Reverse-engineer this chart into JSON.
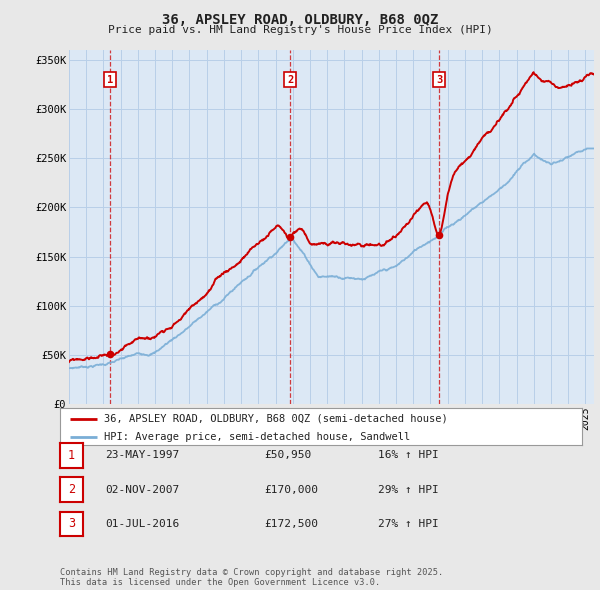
{
  "title": "36, APSLEY ROAD, OLDBURY, B68 0QZ",
  "subtitle": "Price paid vs. HM Land Registry's House Price Index (HPI)",
  "bg_color": "#e8e8e8",
  "plot_bg_color": "#dce8f5",
  "grid_color": "#b8cfe8",
  "property_color": "#cc0000",
  "hpi_color": "#7aaed6",
  "ylim": [
    0,
    360000
  ],
  "yticks": [
    0,
    50000,
    100000,
    150000,
    200000,
    250000,
    300000,
    350000
  ],
  "ytick_labels": [
    "£0",
    "£50K",
    "£100K",
    "£150K",
    "£200K",
    "£250K",
    "£300K",
    "£350K"
  ],
  "xlim_start": 1995,
  "xlim_end": 2025.5,
  "purchases": [
    {
      "label": "1",
      "date_num": 1997.38,
      "price": 50950
    },
    {
      "label": "2",
      "date_num": 2007.84,
      "price": 170000
    },
    {
      "label": "3",
      "date_num": 2016.5,
      "price": 172500
    }
  ],
  "purchase_dates_text": [
    "23-MAY-1997",
    "02-NOV-2007",
    "01-JUL-2016"
  ],
  "purchase_prices_text": [
    "£50,950",
    "£170,000",
    "£172,500"
  ],
  "purchase_hpi_text": [
    "16% ↑ HPI",
    "29% ↑ HPI",
    "27% ↑ HPI"
  ],
  "legend_property": "36, APSLEY ROAD, OLDBURY, B68 0QZ (semi-detached house)",
  "legend_hpi": "HPI: Average price, semi-detached house, Sandwell",
  "footer": "Contains HM Land Registry data © Crown copyright and database right 2025.\nThis data is licensed under the Open Government Licence v3.0."
}
